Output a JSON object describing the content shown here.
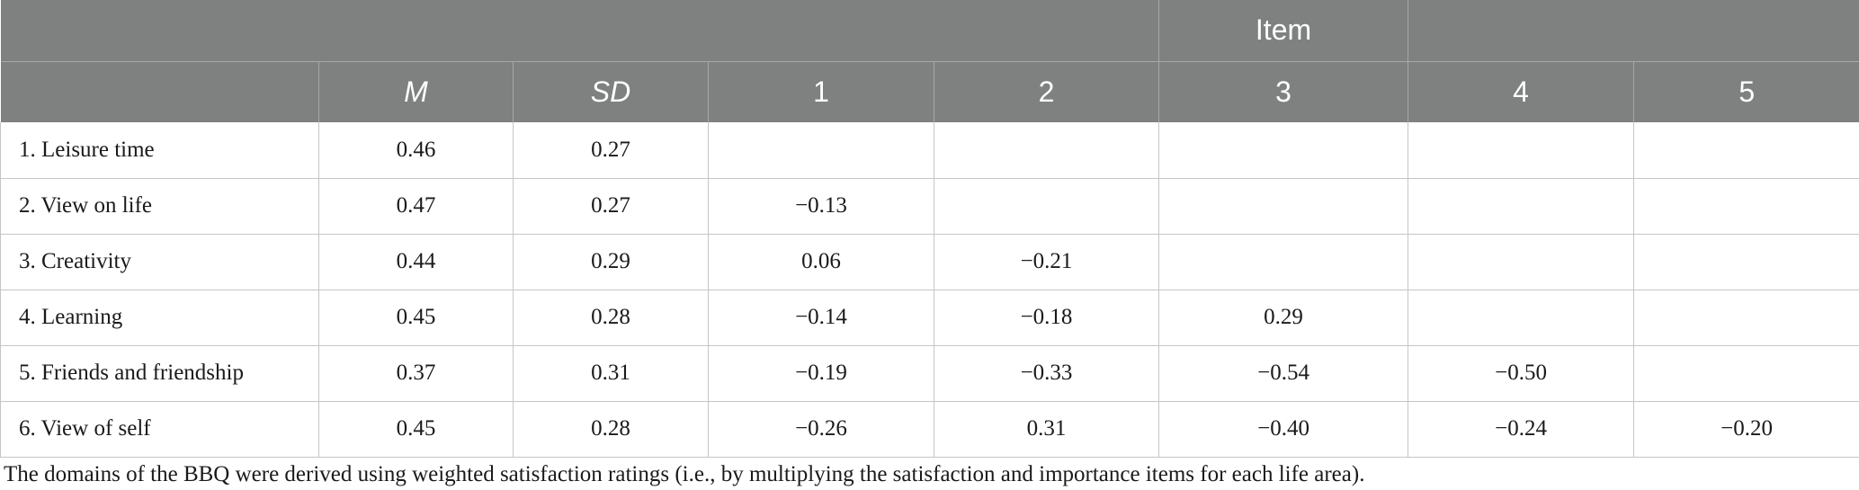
{
  "table": {
    "group_header": "Item",
    "columns": [
      {
        "label": "",
        "italic": false
      },
      {
        "label": "M",
        "italic": true
      },
      {
        "label": "SD",
        "italic": true
      },
      {
        "label": "1",
        "italic": false
      },
      {
        "label": "2",
        "italic": false
      },
      {
        "label": "3",
        "italic": false
      },
      {
        "label": "4",
        "italic": false
      },
      {
        "label": "5",
        "italic": false
      }
    ],
    "rows": [
      [
        "1. Leisure time",
        "0.46",
        "0.27",
        "",
        "",
        "",
        "",
        ""
      ],
      [
        "2. View on life",
        "0.47",
        "0.27",
        "−0.13",
        "",
        "",
        "",
        ""
      ],
      [
        "3. Creativity",
        "0.44",
        "0.29",
        "0.06",
        "−0.21",
        "",
        "",
        ""
      ],
      [
        "4. Learning",
        "0.45",
        "0.28",
        "−0.14",
        "−0.18",
        "0.29",
        "",
        ""
      ],
      [
        "5. Friends and friendship",
        "0.37",
        "0.31",
        "−0.19",
        "−0.33",
        "−0.54",
        "−0.50",
        ""
      ],
      [
        "6. View of self",
        "0.45",
        "0.28",
        "−0.26",
        "0.31",
        "−0.40",
        "−0.24",
        "−0.20"
      ]
    ]
  },
  "footnote": "The domains of the BBQ were derived using weighted satisfaction ratings (i.e., by multiplying the satisfaction and importance items for each life area)."
}
